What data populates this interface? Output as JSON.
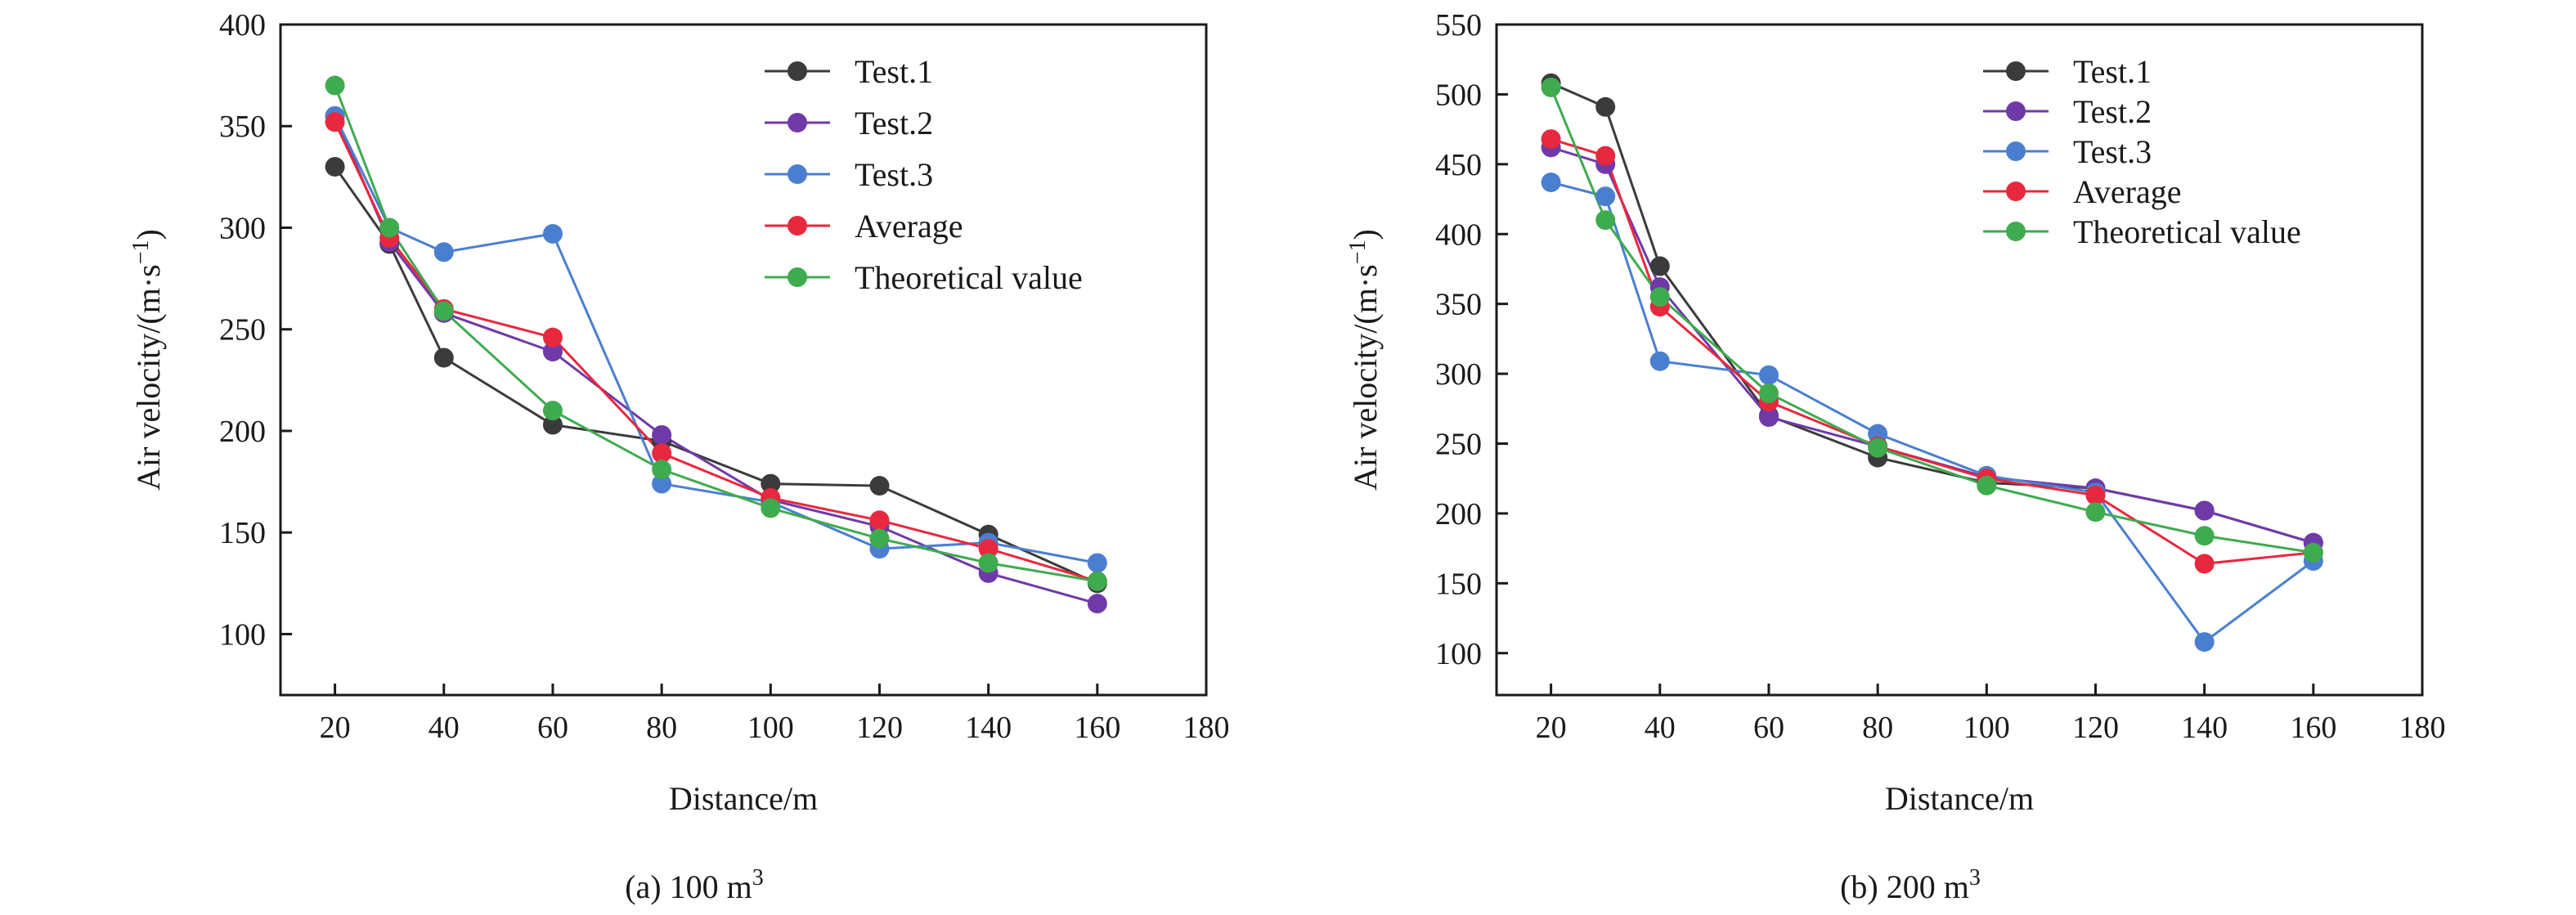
{
  "colors": {
    "Test.1": "#3b3b3b",
    "Test.2": "#6f3aa8",
    "Test.3": "#4a7fd0",
    "Average": "#e8283e",
    "Theoretical value": "#3fab4f"
  },
  "chart_data": [
    {
      "type": "line",
      "caption": "(a) 100 m",
      "caption_sup": "3",
      "xlabel": "Distance/m",
      "ylabel": "Air velocity/(m·s",
      "ylabel_sup": "−1",
      "ylabel_close": ")",
      "xlim": [
        10,
        180
      ],
      "ylim": [
        70,
        400
      ],
      "xticks": [
        20,
        40,
        60,
        80,
        100,
        120,
        140,
        160,
        180
      ],
      "yticks": [
        100,
        150,
        200,
        250,
        300,
        350,
        400
      ],
      "legend_position": "top-right",
      "x": [
        20,
        30,
        40,
        60,
        80,
        100,
        120,
        140,
        160
      ],
      "series": [
        {
          "name": "Test.1",
          "values": [
            330,
            292,
            236,
            203,
            195,
            174,
            173,
            149,
            125
          ]
        },
        {
          "name": "Test.2",
          "values": [
            355,
            293,
            258,
            239,
            198,
            166,
            153,
            130,
            115
          ]
        },
        {
          "name": "Test.3",
          "values": [
            355,
            300,
            288,
            297,
            174,
            165,
            142,
            145,
            135
          ]
        },
        {
          "name": "Average",
          "values": [
            352,
            295,
            260,
            246,
            189,
            167,
            156,
            142,
            126
          ]
        },
        {
          "name": "Theoretical value",
          "values": [
            370,
            300,
            259,
            210,
            181,
            162,
            147,
            135,
            126
          ]
        }
      ]
    },
    {
      "type": "line",
      "caption": "(b) 200 m",
      "caption_sup": "3",
      "xlabel": "Distance/m",
      "ylabel": "Air velocity/(m·s",
      "ylabel_sup": "−1",
      "ylabel_close": ")",
      "xlim": [
        10,
        180
      ],
      "ylim": [
        70,
        550
      ],
      "xticks": [
        20,
        40,
        60,
        80,
        100,
        120,
        140,
        160,
        180
      ],
      "yticks": [
        100,
        150,
        200,
        250,
        300,
        350,
        400,
        450,
        500,
        550
      ],
      "legend_position": "top-right",
      "x": [
        20,
        30,
        40,
        60,
        80,
        100,
        120,
        140,
        160
      ],
      "series": [
        {
          "name": "Test.1",
          "values": [
            508,
            491,
            377,
            270,
            240,
            222,
            218,
            202,
            179
          ]
        },
        {
          "name": "Test.2",
          "values": [
            462,
            450,
            362,
            269,
            248,
            226,
            218,
            202,
            179
          ]
        },
        {
          "name": "Test.3",
          "values": [
            437,
            427,
            309,
            299,
            257,
            227,
            215,
            108,
            166
          ]
        },
        {
          "name": "Average",
          "values": [
            468,
            456,
            348,
            280,
            248,
            225,
            213,
            164,
            172
          ]
        },
        {
          "name": "Theoretical value",
          "values": [
            505,
            410,
            355,
            286,
            247,
            220,
            201,
            184,
            172
          ]
        }
      ]
    }
  ]
}
